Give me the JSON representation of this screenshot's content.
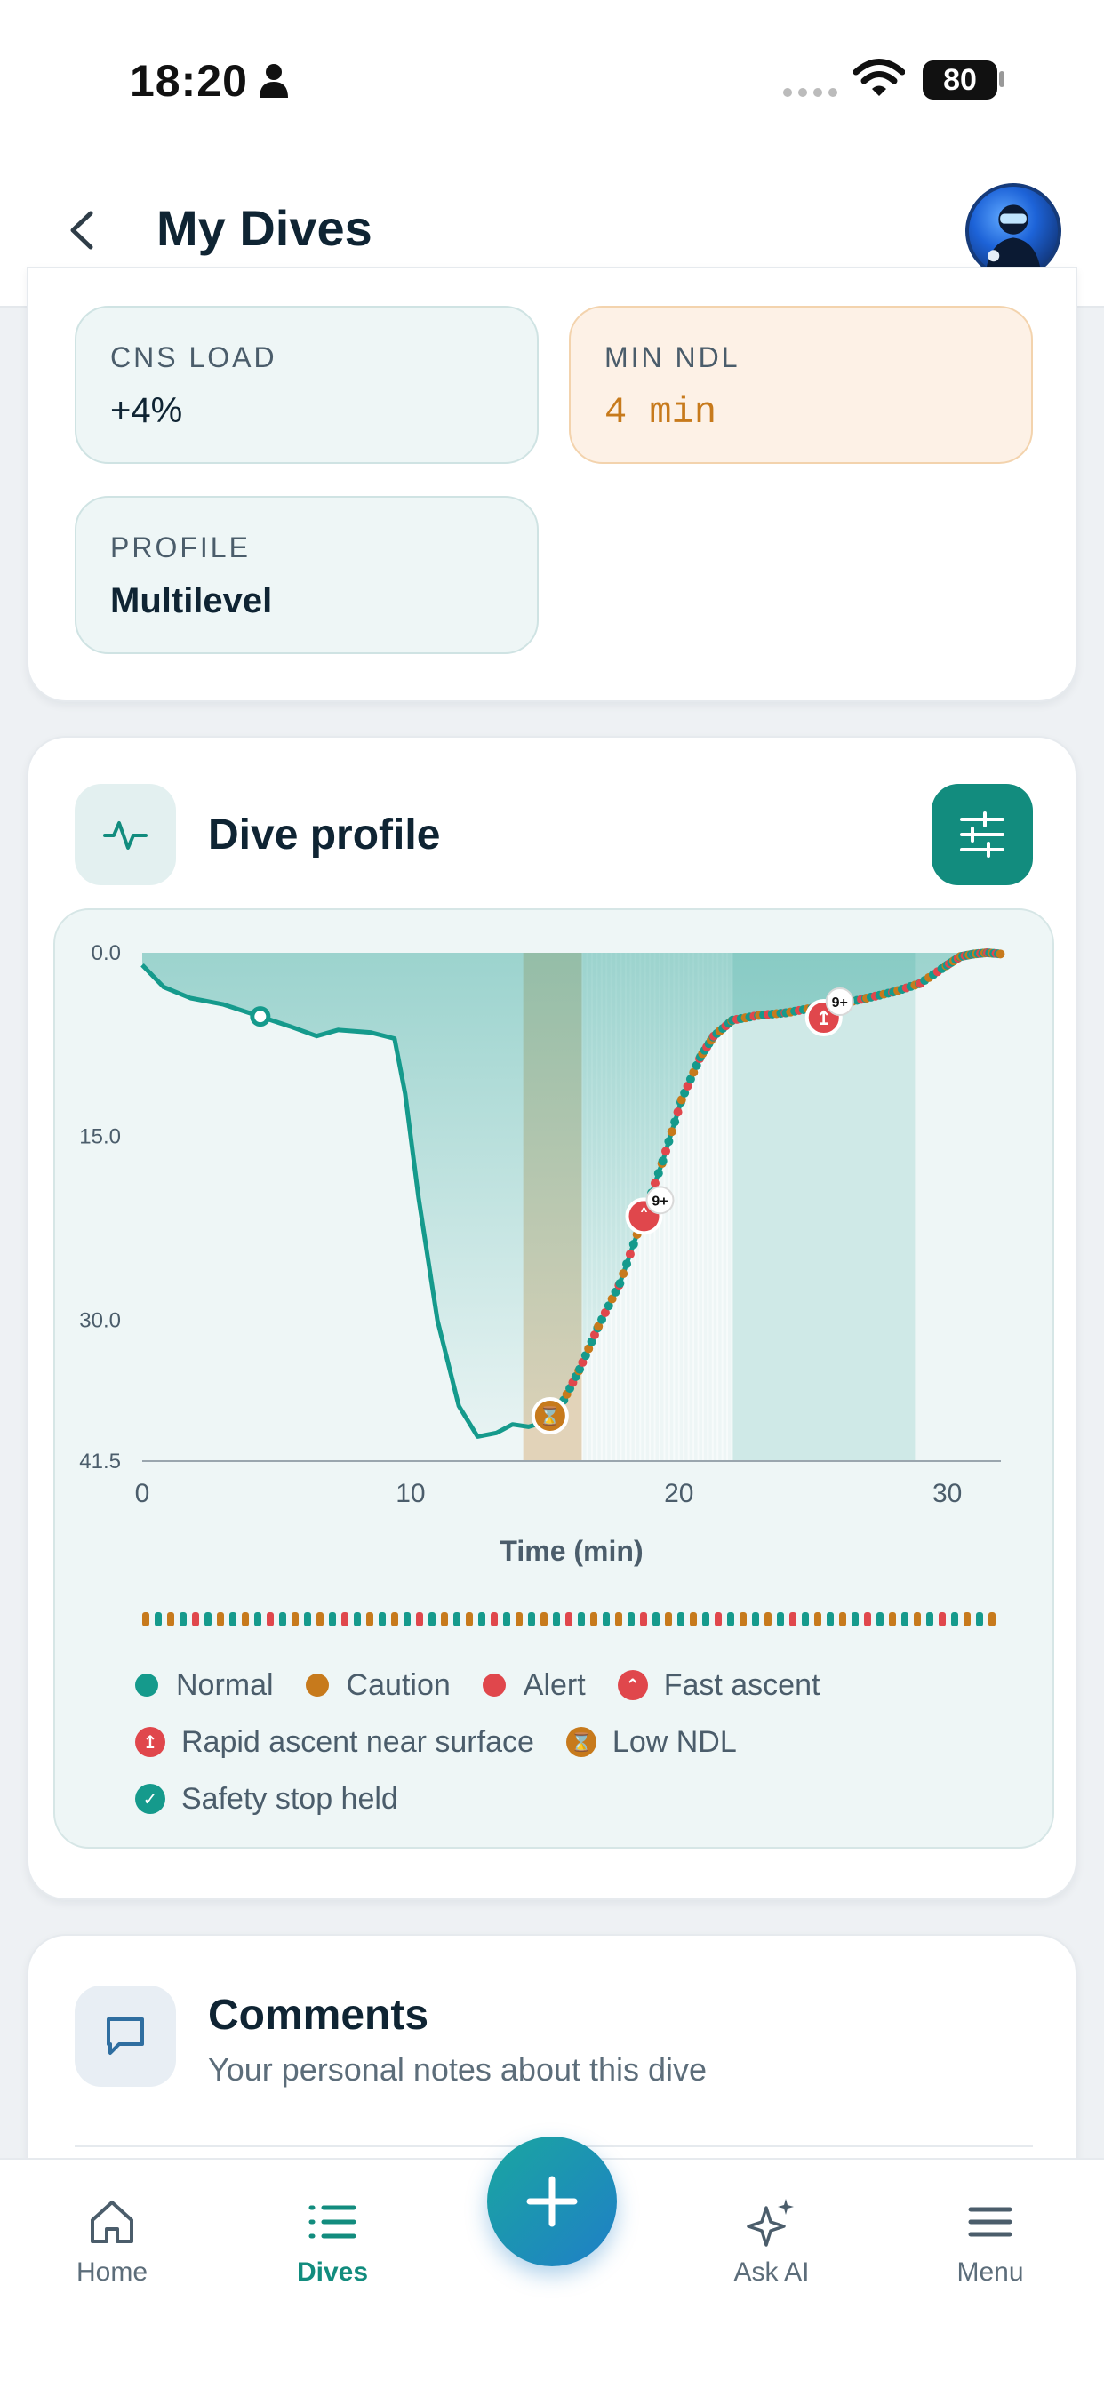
{
  "status_bar": {
    "time": "18:20",
    "battery": "80"
  },
  "header": {
    "title": "My Dives"
  },
  "stats": {
    "cns_load": {
      "label": "CNS LOAD",
      "value": "+4%"
    },
    "min_ndl": {
      "label": "MIN NDL",
      "value": "4 min"
    },
    "profile": {
      "label": "PROFILE",
      "value": "Multilevel"
    }
  },
  "dive_profile": {
    "title": "Dive profile",
    "badges": {
      "fast_ascent_count": "9+",
      "surface_count": "9+"
    },
    "legend": {
      "normal": "Normal",
      "caution": "Caution",
      "alert": "Alert",
      "fast_ascent": "Fast ascent",
      "rapid_ascent": "Rapid ascent near surface",
      "low_ndl": "Low NDL",
      "safety_stop": "Safety stop held"
    }
  },
  "chart_data": {
    "type": "line",
    "xlabel": "Time (min)",
    "ylabel": "",
    "x_ticks": [
      "0",
      "10",
      "20",
      "30"
    ],
    "y_ticks": [
      "0.0",
      "15.0",
      "30.0",
      "41.5"
    ],
    "xlim": [
      0,
      32
    ],
    "ylim": [
      0,
      41.5
    ],
    "y_inverted": true,
    "series": [
      {
        "x": [
          0,
          0.8,
          1.8,
          3,
          4.4,
          5.5,
          6.5,
          7.3,
          8.5,
          9.4,
          9.8,
          10.3,
          11,
          11.8,
          12.5,
          13.2,
          13.8,
          14.4,
          15,
          15.6,
          16.3,
          17,
          17.8,
          18.6,
          19.4,
          20.1,
          20.8,
          21.3,
          22,
          23,
          24,
          25,
          26,
          27,
          28,
          29,
          30,
          30.5,
          31,
          31.5,
          32
        ],
        "y": [
          1.0,
          2.8,
          3.7,
          4.2,
          5.2,
          6.0,
          6.8,
          6.3,
          6.5,
          7.0,
          11.5,
          20.0,
          30.0,
          37.0,
          39.5,
          39.2,
          38.5,
          38.7,
          38.3,
          37.0,
          34.0,
          30.5,
          27.0,
          22.0,
          17.0,
          12.0,
          8.5,
          6.8,
          5.5,
          5.1,
          4.9,
          4.5,
          4.2,
          3.7,
          3.2,
          2.5,
          1.0,
          0.3,
          0.1,
          0.0,
          0.1
        ]
      }
    ],
    "markers": [
      {
        "type": "safety_stop",
        "x": 4.4,
        "y": 5.2
      },
      {
        "type": "low_ndl",
        "x": 15.2,
        "y": 37.8
      },
      {
        "type": "fast_ascent",
        "x": 18.7,
        "y": 21.5
      },
      {
        "type": "rapid_ascent_surface",
        "x": 25.4,
        "y": 5.3
      }
    ],
    "bands": [
      {
        "type": "caution",
        "x_start": 14.2,
        "x_end": 16.4
      },
      {
        "type": "normal",
        "x_start": 22.0,
        "x_end": 28.8
      }
    ]
  },
  "comments": {
    "title": "Comments",
    "subtitle": "Your personal notes about this dive"
  },
  "nav": {
    "home": "Home",
    "dives": "Dives",
    "ask_ai": "Ask AI",
    "menu": "Menu"
  },
  "colors": {
    "normal": "#159a8c",
    "caution": "#c77a1c",
    "alert": "#e0474c",
    "accent": "#128c7e"
  }
}
